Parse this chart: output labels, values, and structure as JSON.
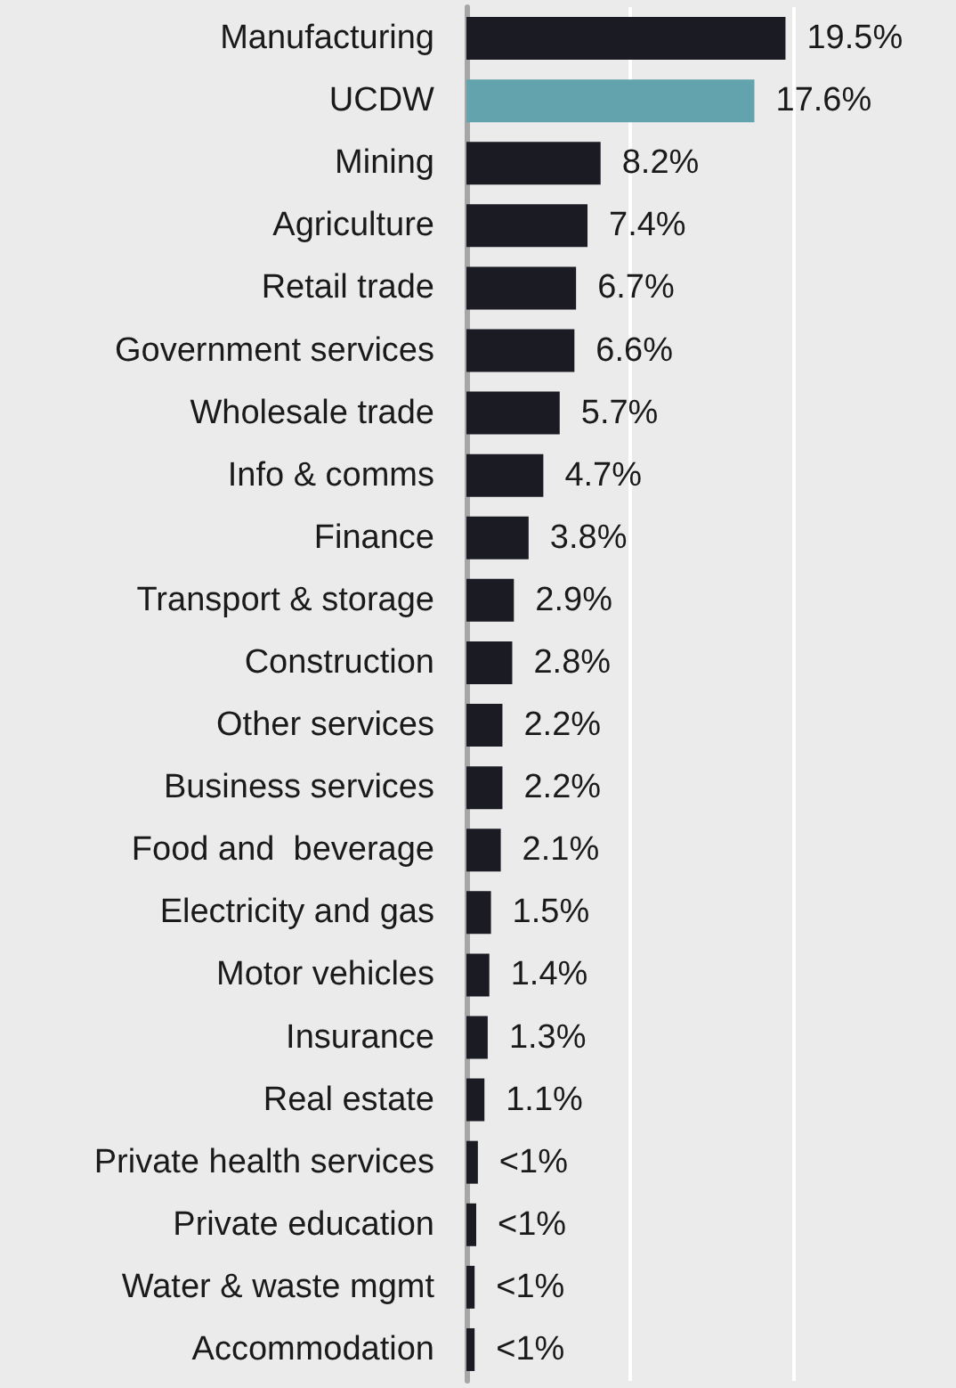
{
  "chart_data": {
    "type": "bar",
    "orientation": "horizontal",
    "categories": [
      "Manufacturing",
      "UCDW",
      "Mining",
      "Agriculture",
      "Retail trade",
      "Government services",
      "Wholesale trade",
      "Info & comms",
      "Finance",
      "Transport & storage",
      "Construction",
      "Other services",
      "Business services",
      "Food and  beverage",
      "Electricity and gas",
      "Motor vehicles",
      "Insurance",
      "Real estate",
      "Private health services",
      "Private education",
      "Water & waste mgmt",
      "Accommodation"
    ],
    "values": [
      19.5,
      17.6,
      8.2,
      7.4,
      6.7,
      6.6,
      5.7,
      4.7,
      3.8,
      2.9,
      2.8,
      2.2,
      2.2,
      2.1,
      1.5,
      1.4,
      1.3,
      1.1,
      0.7,
      0.6,
      0.5,
      0.5
    ],
    "value_labels": [
      "19.5%",
      "17.6%",
      "8.2%",
      "7.4%",
      "6.7%",
      "6.6%",
      "5.7%",
      "4.7%",
      "3.8%",
      "2.9%",
      "2.8%",
      "2.2%",
      "2.2%",
      "2.1%",
      "1.5%",
      "1.4%",
      "1.3%",
      "1.1%",
      "<1%",
      "<1%",
      "<1%",
      "<1%"
    ],
    "colors": [
      "#1b1b24",
      "#62a3ad",
      "#1b1b24",
      "#1b1b24",
      "#1b1b24",
      "#1b1b24",
      "#1b1b24",
      "#1b1b24",
      "#1b1b24",
      "#1b1b24",
      "#1b1b24",
      "#1b1b24",
      "#1b1b24",
      "#1b1b24",
      "#1b1b24",
      "#1b1b24",
      "#1b1b24",
      "#1b1b24",
      "#1b1b24",
      "#1b1b24",
      "#1b1b24",
      "#1b1b24"
    ],
    "ref_lines": [
      {
        "axis": "x",
        "value": 10,
        "color": "#ffffff"
      },
      {
        "axis": "x",
        "value": 20,
        "color": "#ffffff"
      }
    ],
    "tick_labels": "y"
  }
}
